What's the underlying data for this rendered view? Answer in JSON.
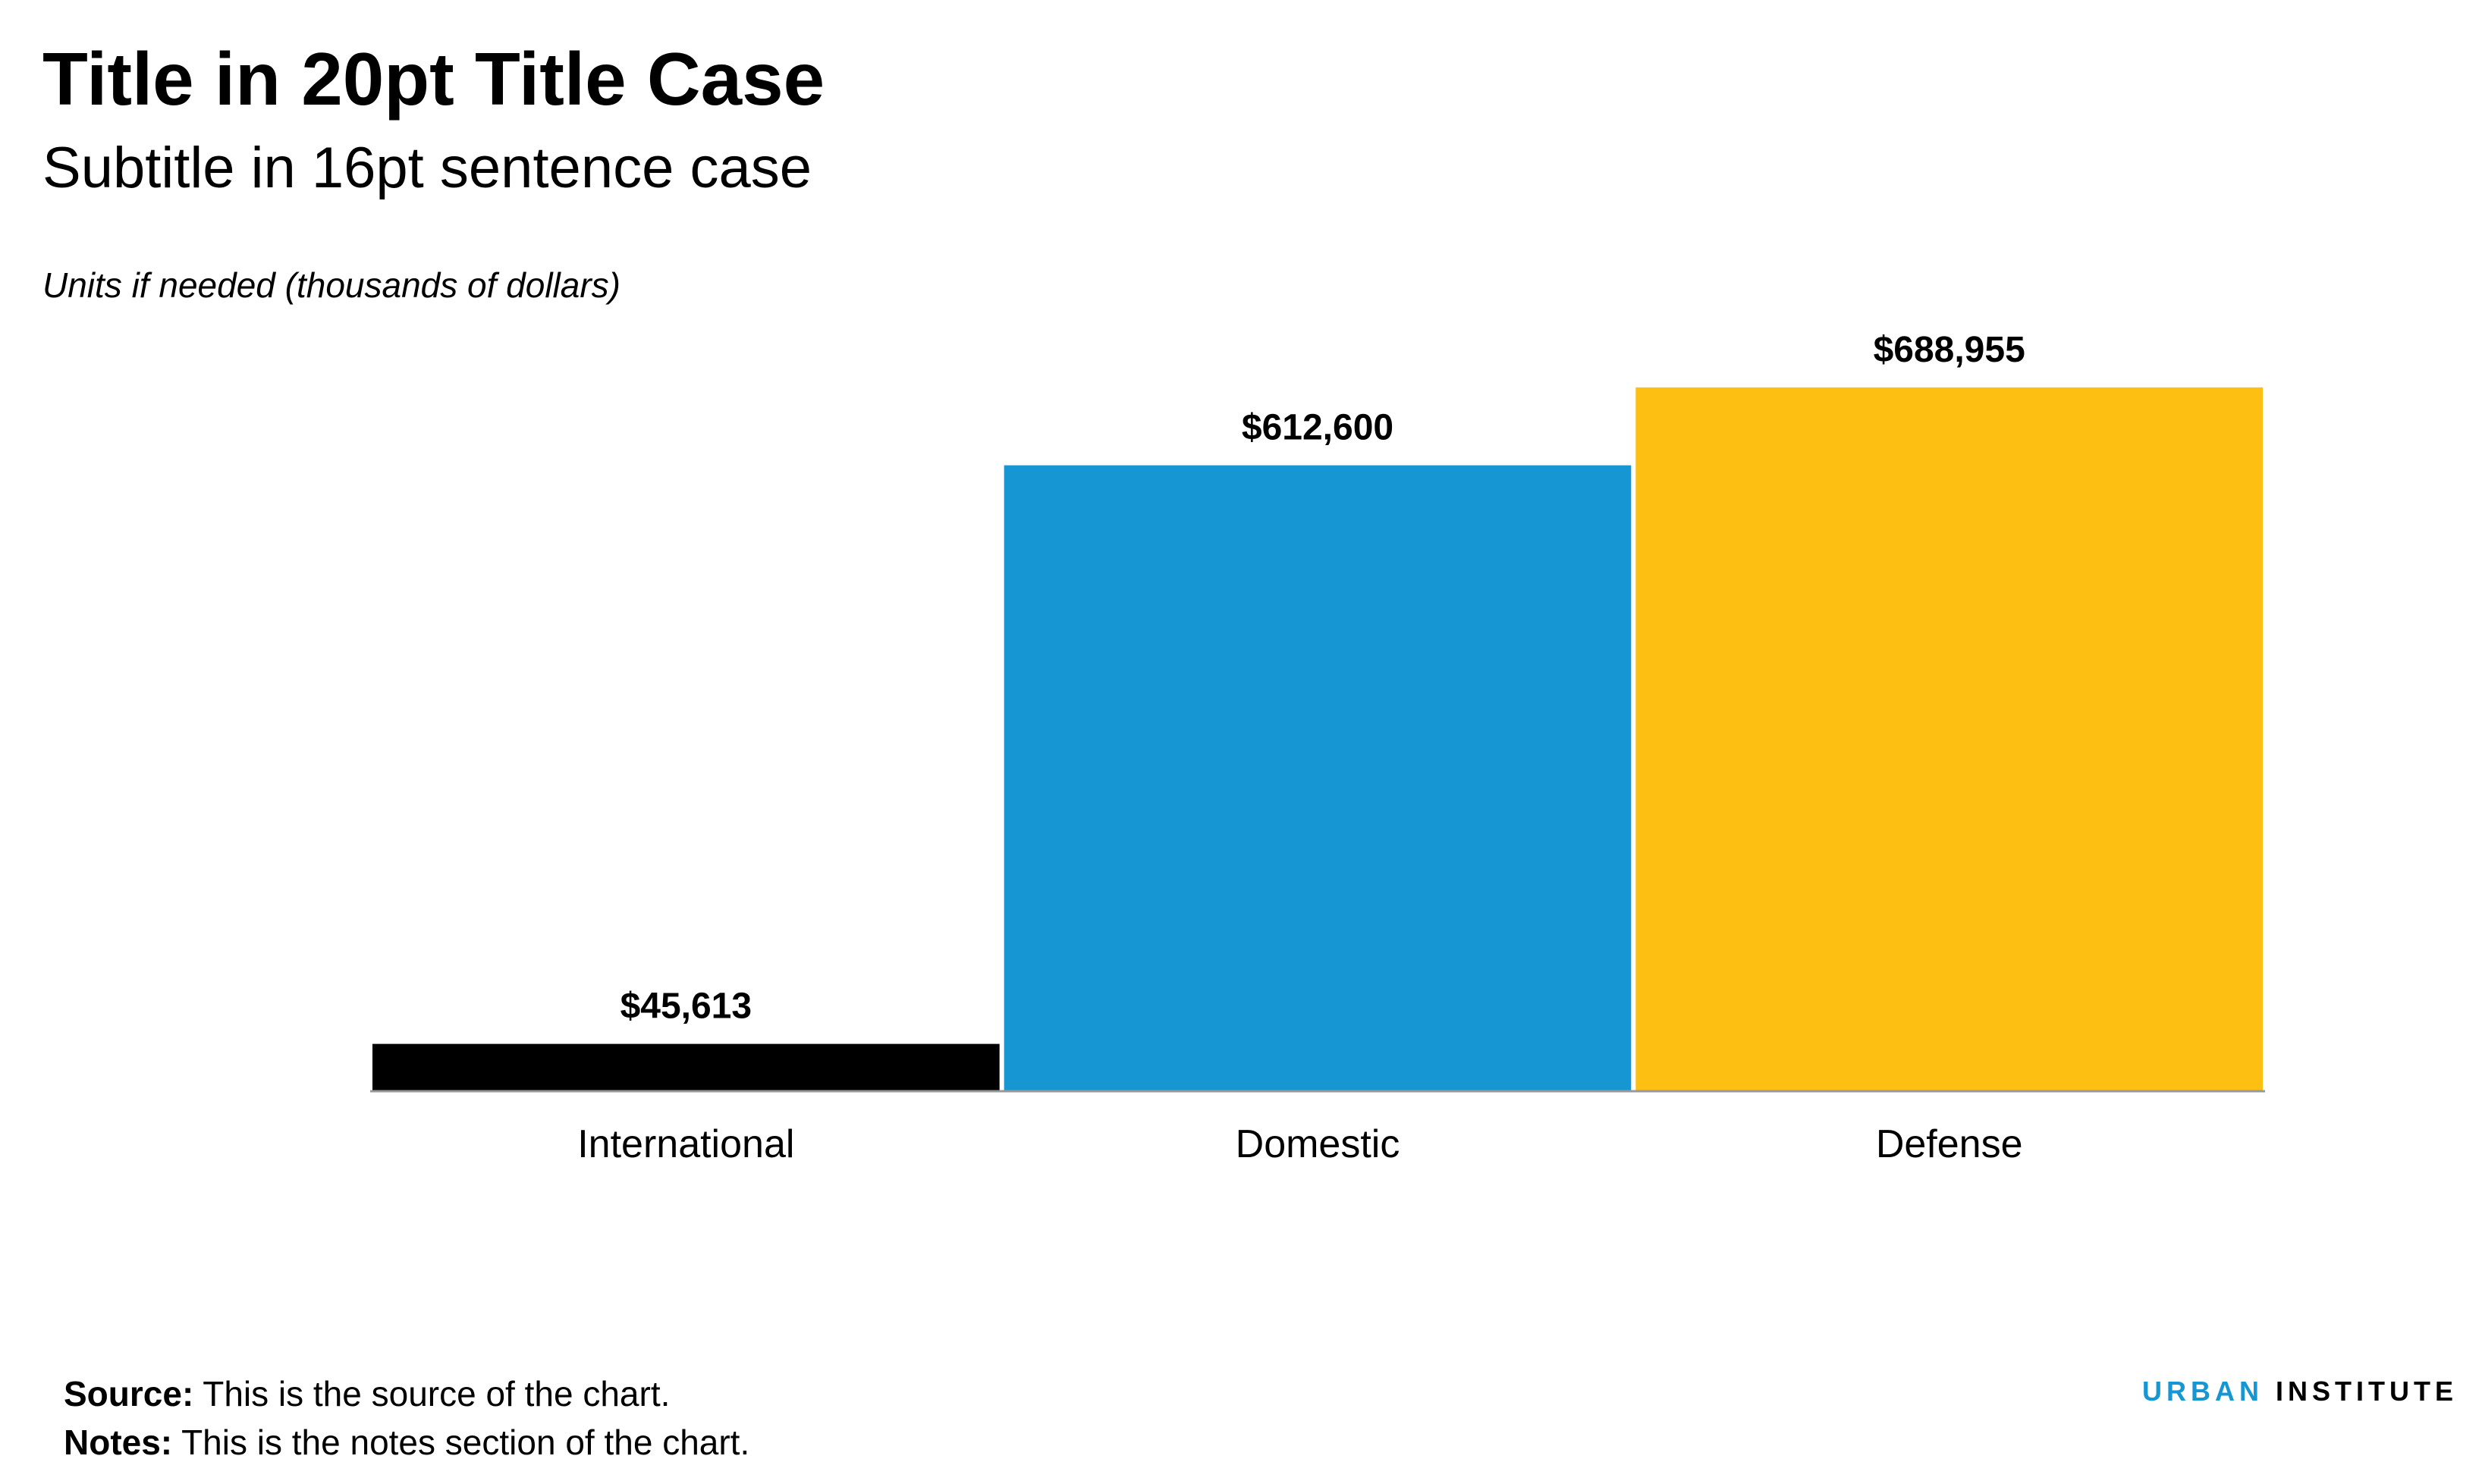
{
  "header": {
    "title": "Title in 20pt Title Case",
    "subtitle": "Subtitle in 16pt sentence case",
    "units": "Units if needed (thousands of dollars)"
  },
  "chart_data": {
    "type": "bar",
    "title": "Title in 20pt Title Case",
    "subtitle": "Subtitle in 16pt sentence case",
    "ylabel": "Units if needed (thousands of dollars)",
    "xlabel": "",
    "categories": [
      "International",
      "Domestic",
      "Defense"
    ],
    "values": [
      45613,
      612600,
      688955
    ],
    "value_labels": [
      "$45,613",
      "$612,600",
      "$688,955"
    ],
    "colors": [
      "#000000",
      "#1696d2",
      "#fdbf11"
    ],
    "ylim": [
      0,
      700000
    ],
    "grid": false,
    "legend": "none"
  },
  "footer": {
    "source_label": "Source:",
    "source_text": "This is the source of the chart.",
    "notes_label": "Notes:",
    "notes_text": "This is the notes section of the chart."
  },
  "logo": {
    "urban": "URBAN",
    "institute": "INSTITUTE"
  }
}
